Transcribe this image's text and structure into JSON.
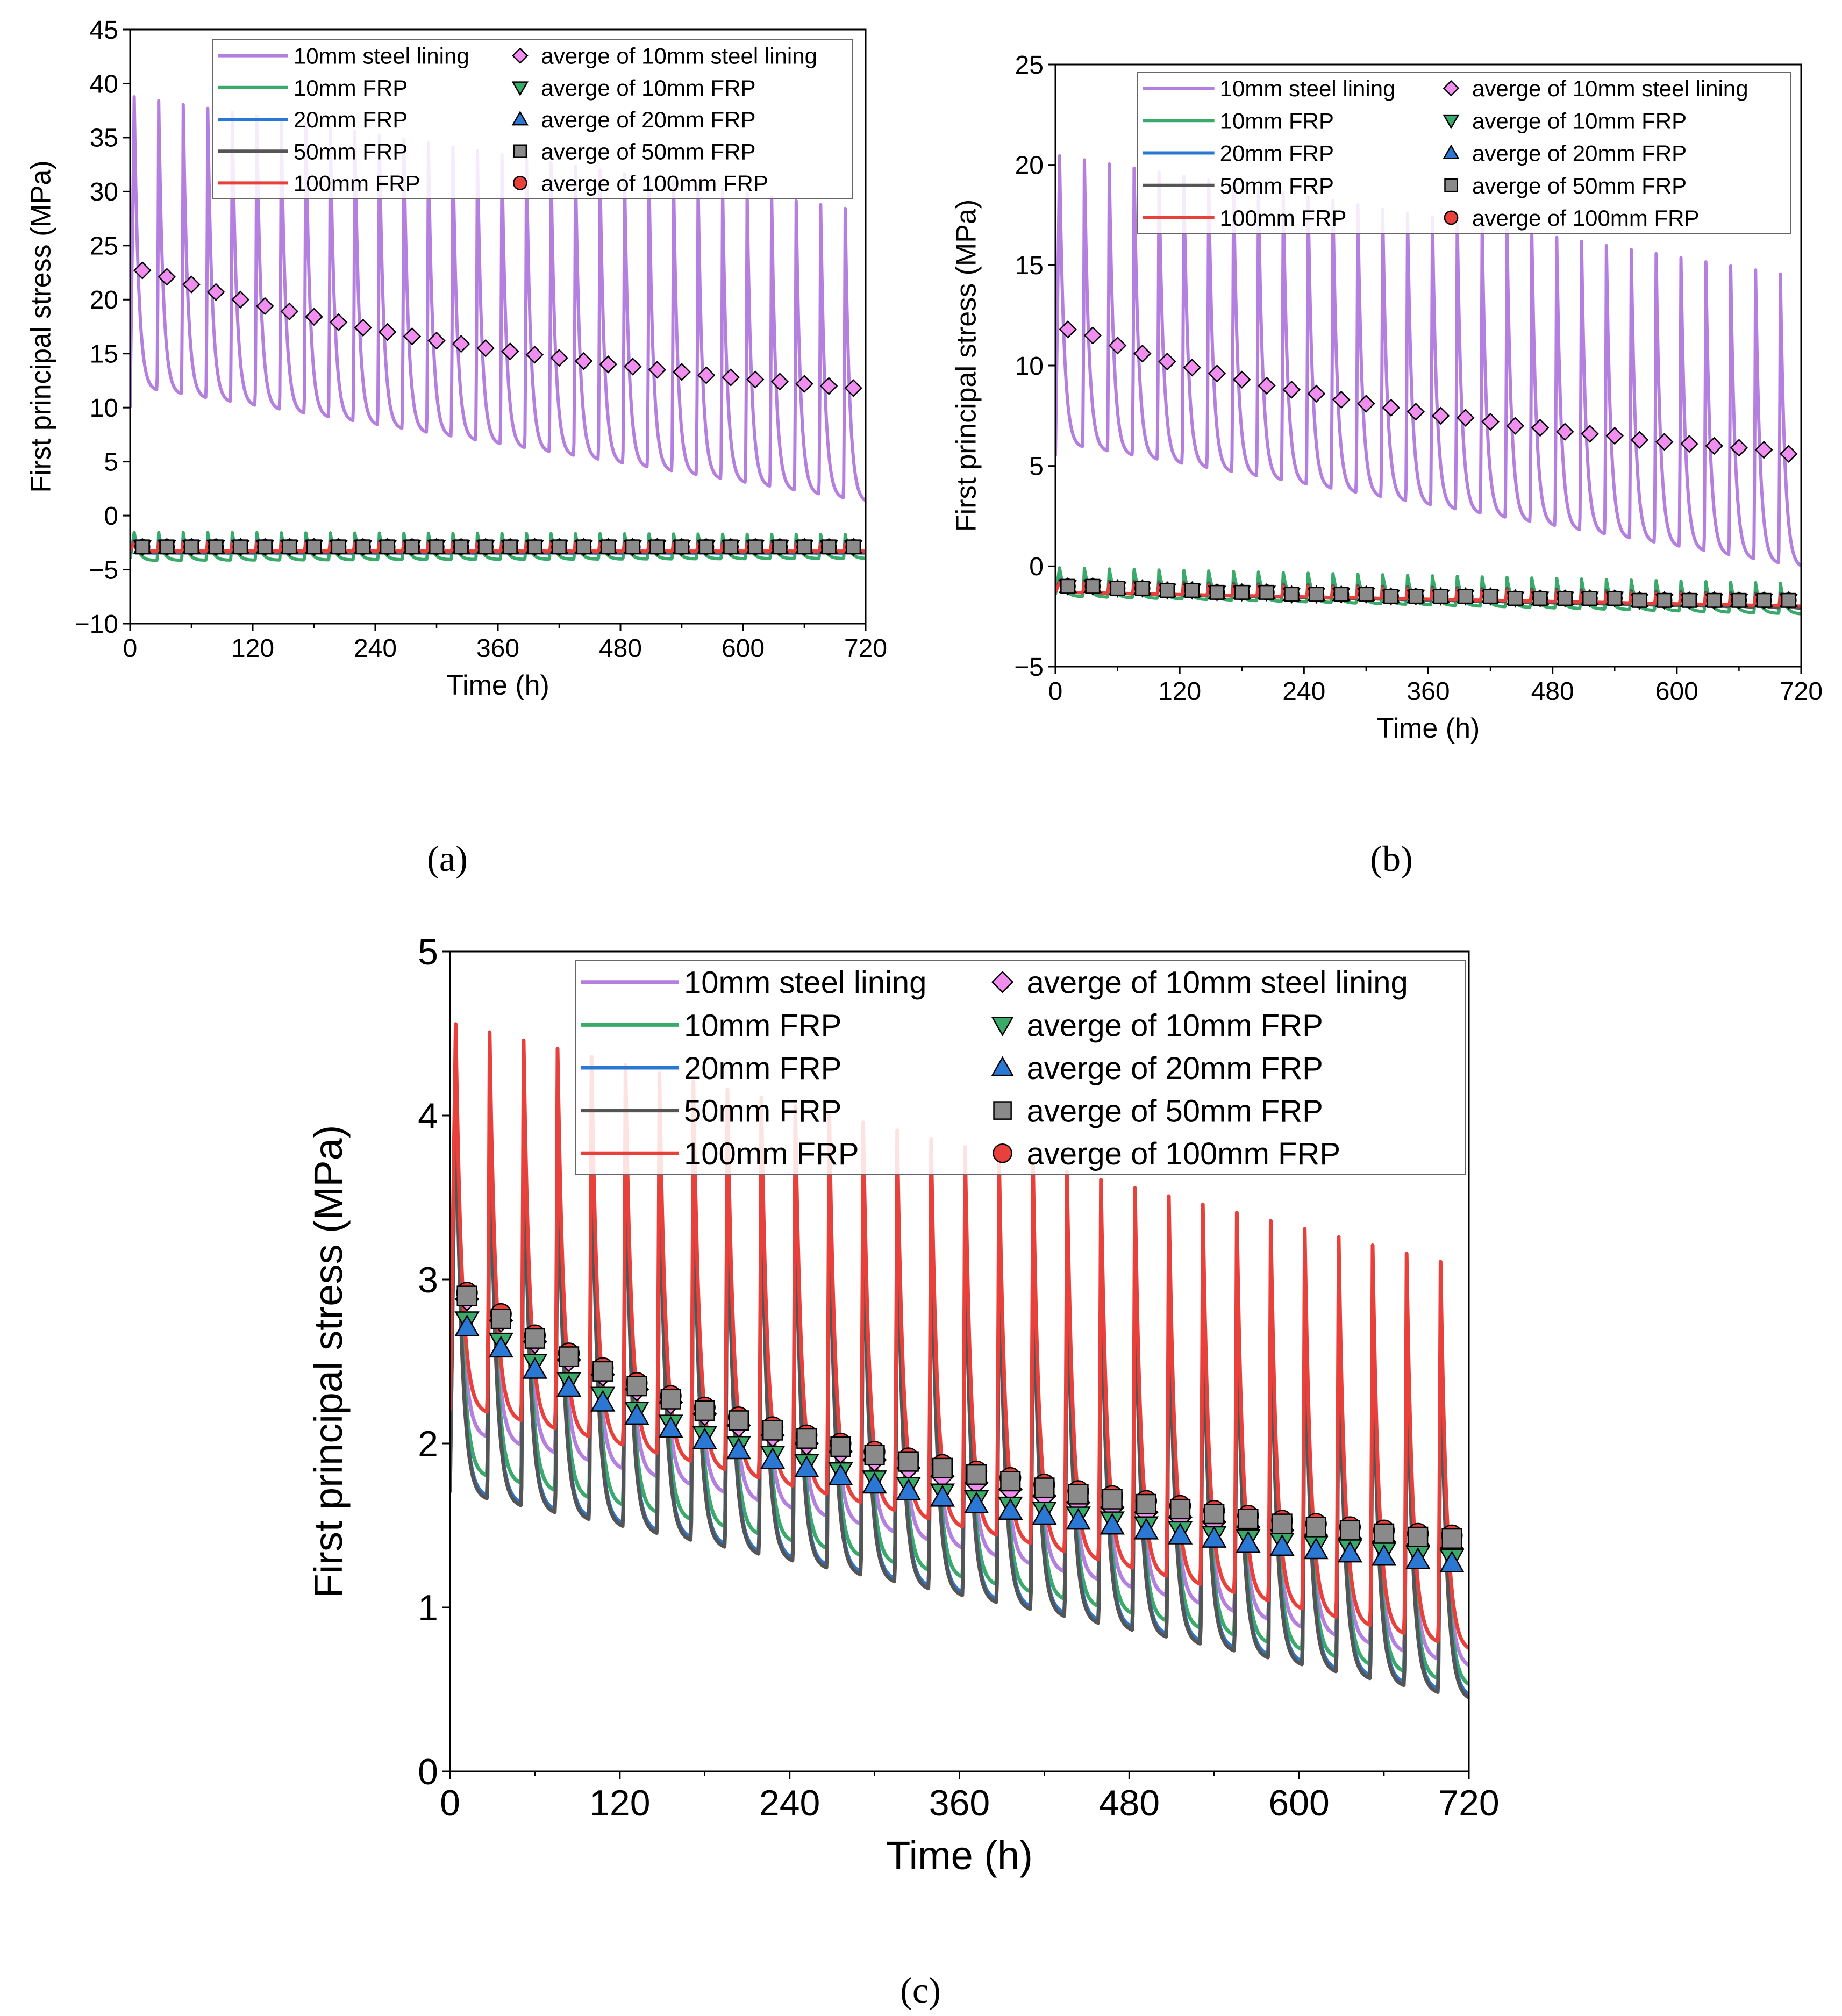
{
  "figure": {
    "panel_labels": [
      "(a)",
      "(b)",
      "(c)"
    ]
  },
  "colors": {
    "steel": "#b57fe0",
    "frp10": "#3aaa6a",
    "frp20": "#2a77d4",
    "frp50": "#555555",
    "frp100": "#e8403a",
    "diamond_fill": "#f08ef0",
    "tri_down_fill": "#3aaa6a",
    "tri_up_fill": "#2a77d4",
    "square_fill": "#8a8a8a",
    "circle_fill": "#e8403a"
  },
  "chart_data": [
    {
      "id": "a",
      "type": "line",
      "title": "",
      "xlabel": "Time (h)",
      "ylabel": "First principal stress (MPa)",
      "xlim": [
        0,
        720
      ],
      "ylim": [
        -10,
        45
      ],
      "xticks": [
        "0",
        "120",
        "240",
        "360",
        "480",
        "600",
        "720"
      ],
      "yticks": [
        "−10",
        "−5",
        "0",
        "5",
        "10",
        "15",
        "20",
        "25",
        "30",
        "35",
        "40",
        "45"
      ],
      "legend": [
        "10mm steel lining",
        "10mm FRP",
        "20mm FRP",
        "50mm FRP",
        "100mm FRP",
        "averge of 10mm steel lining",
        "averge of 10mm FRP",
        "averge of 20mm FRP",
        "averge of 50mm FRP",
        "averge of 100mm FRP"
      ],
      "legend_position": "top-right",
      "cycle_hours": 24,
      "series": [
        {
          "name": "10mm steel lining",
          "peak_start": 38.3,
          "peak_end": 27.6,
          "trough_start": 11.5,
          "trough_end": 0.8,
          "start": 10.0
        },
        {
          "name": "10mm FRP",
          "peak_start": -1.6,
          "peak_end": -1.8,
          "trough_start": -4.2,
          "trough_end": -4.0,
          "start": -4.0
        },
        {
          "name": "20mm FRP",
          "peak_start": -2.3,
          "peak_end": -2.5,
          "trough_start": -3.5,
          "trough_end": -3.5,
          "start": -3.5
        },
        {
          "name": "50mm FRP",
          "peak_start": -2.4,
          "peak_end": -2.6,
          "trough_start": -3.4,
          "trough_end": -3.4,
          "start": -3.4
        },
        {
          "name": "100mm FRP",
          "peak_start": -2.5,
          "peak_end": -2.7,
          "trough_start": -3.3,
          "trough_end": -3.3,
          "start": -3.3
        }
      ],
      "averages": [
        {
          "name": "averge of 10mm steel lining",
          "marker": "diamond",
          "values": [
            22.7,
            22.1,
            21.4,
            20.7,
            20.0,
            19.4,
            18.9,
            18.4,
            17.9,
            17.4,
            17.0,
            16.6,
            16.2,
            15.9,
            15.5,
            15.2,
            14.9,
            14.6,
            14.3,
            14.0,
            13.8,
            13.5,
            13.3,
            13.0,
            12.8,
            12.6,
            12.4,
            12.2,
            12.0,
            11.8
          ]
        },
        {
          "name": "averge of 10mm FRP",
          "marker": "tri_down",
          "values": [
            -2.9,
            -2.9,
            -2.9,
            -2.9,
            -2.9,
            -2.9,
            -2.9,
            -2.9,
            -2.9,
            -2.9,
            -2.9,
            -2.9,
            -2.9,
            -2.9,
            -2.9,
            -2.9,
            -2.9,
            -2.9,
            -2.9,
            -2.9,
            -2.9,
            -2.9,
            -2.9,
            -2.9,
            -2.9,
            -2.9,
            -2.9,
            -2.9,
            -2.9,
            -2.9
          ]
        },
        {
          "name": "averge of 20mm FRP",
          "marker": "tri_up",
          "values": [
            -2.9,
            -2.9,
            -2.9,
            -2.9,
            -2.9,
            -2.9,
            -2.9,
            -2.9,
            -2.9,
            -2.9,
            -2.9,
            -2.9,
            -2.9,
            -2.9,
            -2.9,
            -2.9,
            -2.9,
            -2.9,
            -2.9,
            -2.9,
            -2.9,
            -2.9,
            -2.9,
            -2.9,
            -2.9,
            -2.9,
            -2.9,
            -2.9,
            -2.9,
            -2.9
          ]
        },
        {
          "name": "averge of 50mm FRP",
          "marker": "square",
          "values": [
            -2.9,
            -2.9,
            -2.9,
            -2.9,
            -2.9,
            -2.9,
            -2.9,
            -2.9,
            -2.9,
            -2.9,
            -2.9,
            -2.9,
            -2.9,
            -2.9,
            -2.9,
            -2.9,
            -2.9,
            -2.9,
            -2.9,
            -2.9,
            -2.9,
            -2.9,
            -2.9,
            -2.9,
            -2.9,
            -2.9,
            -2.9,
            -2.9,
            -2.9,
            -2.9
          ]
        },
        {
          "name": "averge of 100mm FRP",
          "marker": "circle",
          "values": [
            -2.9,
            -2.9,
            -2.9,
            -2.9,
            -2.9,
            -2.9,
            -2.9,
            -2.9,
            -2.9,
            -2.9,
            -2.9,
            -2.9,
            -2.9,
            -2.9,
            -2.9,
            -2.9,
            -2.9,
            -2.9,
            -2.9,
            -2.9,
            -2.9,
            -2.9,
            -2.9,
            -2.9,
            -2.9,
            -2.9,
            -2.9,
            -2.9,
            -2.9,
            -2.9
          ]
        }
      ]
    },
    {
      "id": "b",
      "type": "line",
      "title": "",
      "xlabel": "Time (h)",
      "ylabel": "First principal stress (MPa)",
      "xlim": [
        0,
        720
      ],
      "ylim": [
        -5,
        25
      ],
      "xticks": [
        "0",
        "120",
        "240",
        "360",
        "480",
        "600",
        "720"
      ],
      "yticks": [
        "−5",
        "0",
        "5",
        "10",
        "15",
        "20",
        "25"
      ],
      "legend": [
        "10mm steel lining",
        "10mm FRP",
        "20mm FRP",
        "50mm FRP",
        "100mm FRP",
        "averge of 10mm steel lining",
        "averge of 10mm FRP",
        "averge of 20mm FRP",
        "averge of 50mm FRP",
        "averge of 100mm FRP"
      ],
      "legend_position": "top-right",
      "cycle_hours": 24,
      "series": [
        {
          "name": "10mm steel lining",
          "peak_start": 20.2,
          "peak_end": 14.1,
          "trough_start": 5.9,
          "trough_end": -0.3,
          "start": 5.5
        },
        {
          "name": "10mm FRP",
          "peak_start": -0.1,
          "peak_end": -0.9,
          "trough_start": -1.5,
          "trough_end": -2.4,
          "start": -1.4
        },
        {
          "name": "20mm FRP",
          "peak_start": -0.7,
          "peak_end": -1.4,
          "trough_start": -1.3,
          "trough_end": -2.1,
          "start": -1.3
        },
        {
          "name": "50mm FRP",
          "peak_start": -0.7,
          "peak_end": -1.4,
          "trough_start": -1.3,
          "trough_end": -2.1,
          "start": -1.3
        },
        {
          "name": "100mm FRP",
          "peak_start": -0.8,
          "peak_end": -1.5,
          "trough_start": -1.3,
          "trough_end": -2.0,
          "start": -1.3
        }
      ],
      "averages": [
        {
          "name": "averge of 10mm steel lining",
          "marker": "diamond",
          "values": [
            11.8,
            11.5,
            11.0,
            10.6,
            10.2,
            9.9,
            9.6,
            9.3,
            9.0,
            8.8,
            8.6,
            8.3,
            8.1,
            7.9,
            7.7,
            7.5,
            7.4,
            7.2,
            7.0,
            6.9,
            6.7,
            6.6,
            6.5,
            6.3,
            6.2,
            6.1,
            6.0,
            5.9,
            5.8,
            5.6
          ]
        },
        {
          "name": "averge of 10mm FRP",
          "marker": "tri_down",
          "values": [
            -1.0,
            -1.0,
            -1.1,
            -1.1,
            -1.2,
            -1.2,
            -1.3,
            -1.3,
            -1.3,
            -1.4,
            -1.4,
            -1.4,
            -1.4,
            -1.5,
            -1.5,
            -1.5,
            -1.5,
            -1.5,
            -1.6,
            -1.6,
            -1.6,
            -1.6,
            -1.6,
            -1.7,
            -1.7,
            -1.7,
            -1.7,
            -1.7,
            -1.7,
            -1.7
          ]
        },
        {
          "name": "averge of 20mm FRP",
          "marker": "tri_up",
          "values": [
            -1.0,
            -1.0,
            -1.1,
            -1.1,
            -1.2,
            -1.2,
            -1.3,
            -1.3,
            -1.3,
            -1.4,
            -1.4,
            -1.4,
            -1.4,
            -1.5,
            -1.5,
            -1.5,
            -1.5,
            -1.5,
            -1.6,
            -1.6,
            -1.6,
            -1.6,
            -1.6,
            -1.7,
            -1.7,
            -1.7,
            -1.7,
            -1.7,
            -1.7,
            -1.7
          ]
        },
        {
          "name": "averge of 50mm FRP",
          "marker": "square",
          "values": [
            -1.0,
            -1.0,
            -1.1,
            -1.1,
            -1.2,
            -1.2,
            -1.3,
            -1.3,
            -1.3,
            -1.4,
            -1.4,
            -1.4,
            -1.4,
            -1.5,
            -1.5,
            -1.5,
            -1.5,
            -1.5,
            -1.6,
            -1.6,
            -1.6,
            -1.6,
            -1.6,
            -1.7,
            -1.7,
            -1.7,
            -1.7,
            -1.7,
            -1.7,
            -1.7
          ]
        },
        {
          "name": "averge of 100mm FRP",
          "marker": "circle",
          "values": [
            -1.0,
            -1.0,
            -1.1,
            -1.1,
            -1.2,
            -1.2,
            -1.3,
            -1.3,
            -1.3,
            -1.4,
            -1.4,
            -1.4,
            -1.4,
            -1.5,
            -1.5,
            -1.5,
            -1.5,
            -1.5,
            -1.6,
            -1.6,
            -1.6,
            -1.6,
            -1.6,
            -1.7,
            -1.7,
            -1.7,
            -1.7,
            -1.7,
            -1.7,
            -1.7
          ]
        }
      ]
    },
    {
      "id": "c",
      "type": "line",
      "title": "",
      "xlabel": "Time (h)",
      "ylabel": "First principal stress (MPa)",
      "xlim": [
        0,
        720
      ],
      "ylim": [
        0,
        5
      ],
      "xticks": [
        "0",
        "120",
        "240",
        "360",
        "480",
        "600",
        "720"
      ],
      "yticks": [
        "0",
        "1",
        "2",
        "3",
        "4",
        "5"
      ],
      "legend": [
        "10mm steel lining",
        "10mm FRP",
        "20mm FRP",
        "50mm FRP",
        "100mm FRP",
        "averge of 10mm steel lining",
        "averge of 10mm FRP",
        "averge of 20mm FRP",
        "averge of 50mm FRP",
        "averge of 100mm FRP"
      ],
      "legend_position": "top-right",
      "cycle_hours": 24,
      "series": [
        {
          "name": "10mm steel lining",
          "peak_start": 4.25,
          "peak_end": 2.7,
          "trough_start": 2.05,
          "trough_end": 0.6,
          "start": 2.0
        },
        {
          "name": "10mm FRP",
          "peak_start": 4.35,
          "peak_end": 2.8,
          "trough_start": 1.8,
          "trough_end": 0.48,
          "start": 1.8
        },
        {
          "name": "20mm FRP",
          "peak_start": 4.2,
          "peak_end": 2.65,
          "trough_start": 1.68,
          "trough_end": 0.42,
          "start": 1.7
        },
        {
          "name": "50mm FRP",
          "peak_start": 4.18,
          "peak_end": 2.62,
          "trough_start": 1.66,
          "trough_end": 0.4,
          "start": 1.7
        },
        {
          "name": "100mm FRP",
          "peak_start": 4.52,
          "peak_end": 3.02,
          "trough_start": 2.2,
          "trough_end": 0.7,
          "start": 2.2
        }
      ],
      "averages": [
        {
          "name": "averge of 10mm steel lining",
          "marker": "diamond",
          "values": [
            2.88,
            2.75,
            2.62,
            2.51,
            2.42,
            2.33,
            2.25,
            2.18,
            2.11,
            2.05,
            2.0,
            1.95,
            1.9,
            1.85,
            1.8,
            1.76,
            1.72,
            1.68,
            1.64,
            1.61,
            1.58,
            1.55,
            1.52,
            1.49,
            1.47,
            1.44,
            1.42,
            1.4,
            1.38,
            1.36
          ]
        },
        {
          "name": "averge of 10mm FRP",
          "marker": "tri_down",
          "values": [
            2.75,
            2.62,
            2.49,
            2.38,
            2.29,
            2.2,
            2.12,
            2.05,
            1.99,
            1.93,
            1.88,
            1.83,
            1.78,
            1.74,
            1.7,
            1.66,
            1.62,
            1.59,
            1.56,
            1.53,
            1.5,
            1.47,
            1.44,
            1.42,
            1.4,
            1.38,
            1.36,
            1.34,
            1.32,
            1.3
          ]
        },
        {
          "name": "averge of 20mm FRP",
          "marker": "tri_up",
          "values": [
            2.71,
            2.58,
            2.45,
            2.34,
            2.25,
            2.17,
            2.09,
            2.02,
            1.96,
            1.9,
            1.85,
            1.8,
            1.75,
            1.71,
            1.67,
            1.63,
            1.59,
            1.56,
            1.53,
            1.5,
            1.47,
            1.44,
            1.42,
            1.39,
            1.37,
            1.35,
            1.33,
            1.31,
            1.29,
            1.27
          ]
        },
        {
          "name": "averge of 50mm FRP",
          "marker": "square",
          "values": [
            2.9,
            2.76,
            2.64,
            2.53,
            2.44,
            2.35,
            2.27,
            2.2,
            2.14,
            2.08,
            2.03,
            1.98,
            1.93,
            1.89,
            1.85,
            1.81,
            1.77,
            1.73,
            1.69,
            1.66,
            1.63,
            1.6,
            1.57,
            1.54,
            1.51,
            1.49,
            1.47,
            1.45,
            1.43,
            1.42
          ]
        },
        {
          "name": "averge of 100mm FRP",
          "marker": "circle",
          "values": [
            2.92,
            2.79,
            2.66,
            2.55,
            2.46,
            2.37,
            2.29,
            2.22,
            2.16,
            2.1,
            2.05,
            2.0,
            1.95,
            1.91,
            1.87,
            1.83,
            1.79,
            1.75,
            1.71,
            1.68,
            1.65,
            1.62,
            1.59,
            1.56,
            1.53,
            1.51,
            1.49,
            1.47,
            1.45,
            1.44
          ]
        }
      ]
    }
  ]
}
